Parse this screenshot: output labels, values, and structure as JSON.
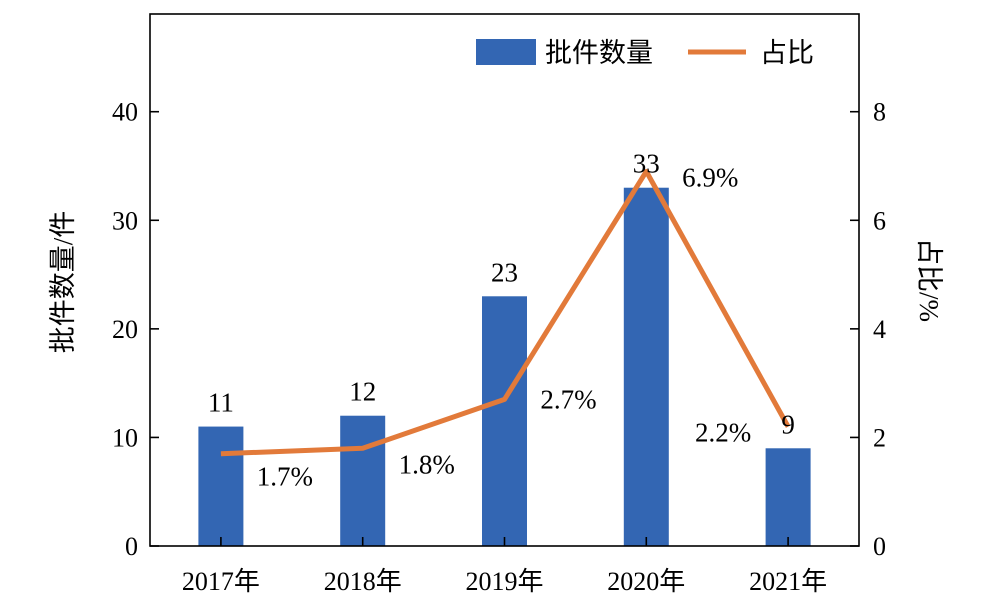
{
  "chart_data": {
    "type": "bar",
    "categories": [
      "2017年",
      "2018年",
      "2019年",
      "2020年",
      "2021年"
    ],
    "series": [
      {
        "name": "批件数量",
        "kind": "bar",
        "axis": "left",
        "values": [
          11,
          12,
          23,
          33,
          9
        ],
        "color": "#3366b3"
      },
      {
        "name": "占比",
        "kind": "line",
        "axis": "right",
        "values": [
          1.7,
          1.8,
          2.7,
          6.9,
          2.2
        ],
        "color": "#e27a3a"
      }
    ],
    "bar_value_labels": [
      "11",
      "12",
      "23",
      "33",
      "9"
    ],
    "line_value_labels": [
      "1.7%",
      "1.8%",
      "2.7%",
      "6.9%",
      "2.2%"
    ],
    "ylabel": "批件数量/件",
    "y2label": "占比/%",
    "ylim": [
      0,
      49
    ],
    "y2lim": [
      0,
      9.8
    ],
    "yticks": [
      0,
      10,
      20,
      30,
      40
    ],
    "y2ticks": [
      0,
      2,
      4,
      6,
      8
    ],
    "legend": {
      "placement": "top-right",
      "items": [
        "批件数量",
        "占比"
      ]
    },
    "grid": false
  }
}
